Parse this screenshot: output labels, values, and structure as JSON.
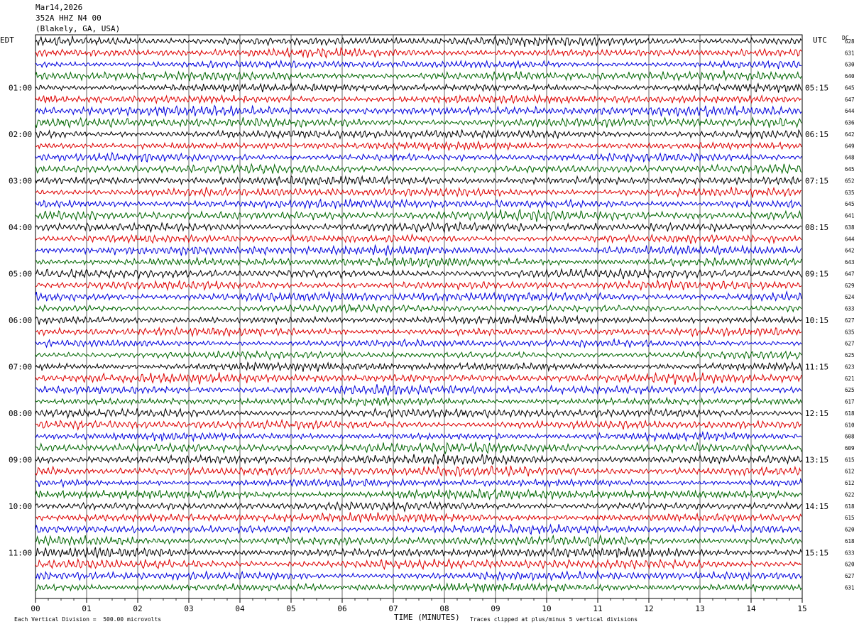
{
  "header": {
    "date": "Mar14,2026",
    "station": "352A HHZ N4 00",
    "location": "(Blakely, GA, USA)"
  },
  "left_tz": "EDT",
  "right_tz": "UTC",
  "dc_label": "DC",
  "footer": {
    "scale": "Each Vertical Division =  500.00 microvolts",
    "clip_note": "Traces clipped at plus/minus 5 vertical divisions"
  },
  "chart_data": {
    "type": "line",
    "title": "",
    "xlabel": "TIME (MINUTES)",
    "ylabel": "",
    "x_ticks": [
      "00",
      "01",
      "02",
      "03",
      "04",
      "05",
      "06",
      "07",
      "08",
      "09",
      "10",
      "11",
      "12",
      "13",
      "14",
      "15"
    ],
    "xlim": [
      0,
      15
    ],
    "trace_colors": [
      "#000000",
      "#dd0000",
      "#0000dd",
      "#006600"
    ],
    "left_hours": [
      "01:00",
      "02:00",
      "03:00",
      "04:00",
      "05:00",
      "06:00",
      "07:00",
      "08:00",
      "09:00",
      "10:00",
      "11:00"
    ],
    "right_hours": [
      "05:15",
      "06:15",
      "07:15",
      "08:15",
      "09:15",
      "10:15",
      "11:15",
      "12:15",
      "13:15",
      "14:15",
      "15:15"
    ],
    "hour_label_first_row": 4,
    "rows_per_hour": 4,
    "dc_offsets": [
      628,
      631,
      630,
      640,
      645,
      647,
      644,
      636,
      642,
      649,
      648,
      645,
      652,
      635,
      645,
      641,
      638,
      644,
      642,
      643,
      647,
      629,
      624,
      633,
      627,
      635,
      627,
      625,
      623,
      621,
      625,
      617,
      618,
      610,
      608,
      609,
      615,
      612,
      612,
      622,
      618,
      615,
      620,
      618,
      633,
      620,
      627,
      631
    ],
    "grid": true
  }
}
